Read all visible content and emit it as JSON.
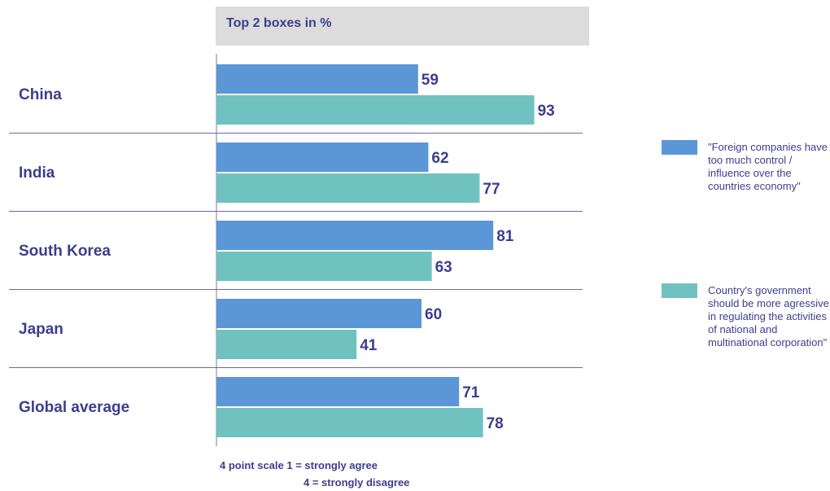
{
  "chart_data": {
    "type": "bar",
    "orientation": "horizontal",
    "title": "Top 2 boxes in %",
    "categories": [
      "China",
      "India",
      "South Korea",
      "Japan",
      "Global average"
    ],
    "series": [
      {
        "name": "\"Foreign companies have too much control / influence over the countries economy\"",
        "color": "#5b96d6",
        "values": [
          59,
          62,
          81,
          60,
          71
        ]
      },
      {
        "name": "Country's government should be more agressive in regulating the activities of national and multinational corporation\"",
        "color": "#70c2c1",
        "values": [
          93,
          77,
          63,
          41,
          78
        ]
      }
    ],
    "xlim": [
      0,
      100
    ],
    "legend": "right",
    "grid": false
  },
  "footnote": {
    "line1": "4 point scale 1 = strongly agree",
    "line2": "4 = strongly disagree"
  },
  "colors": {
    "text": "#3d3d8f",
    "separator": "#6a6aa8",
    "header_bg": "#dcdcdc"
  }
}
